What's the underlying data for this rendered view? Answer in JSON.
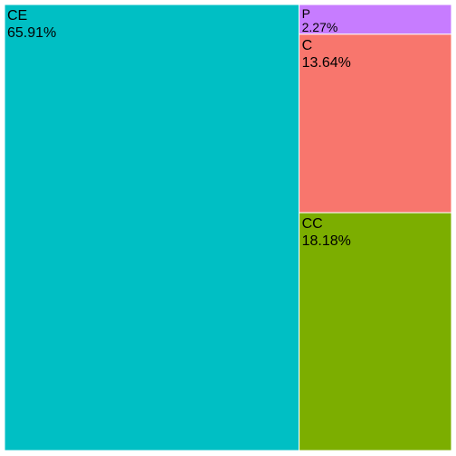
{
  "chart_data": {
    "type": "treemap",
    "title": "",
    "tiles": [
      {
        "label": "CE",
        "value": 65.91,
        "value_label": "65.91%",
        "color": "#00BFC4"
      },
      {
        "label": "CC",
        "value": 18.18,
        "value_label": "18.18%",
        "color": "#7CAE00"
      },
      {
        "label": "C",
        "value": 13.64,
        "value_label": "13.64%",
        "color": "#F8766D"
      },
      {
        "label": "P",
        "value": 2.27,
        "value_label": "2.27%",
        "color": "#C77CFF"
      }
    ]
  }
}
